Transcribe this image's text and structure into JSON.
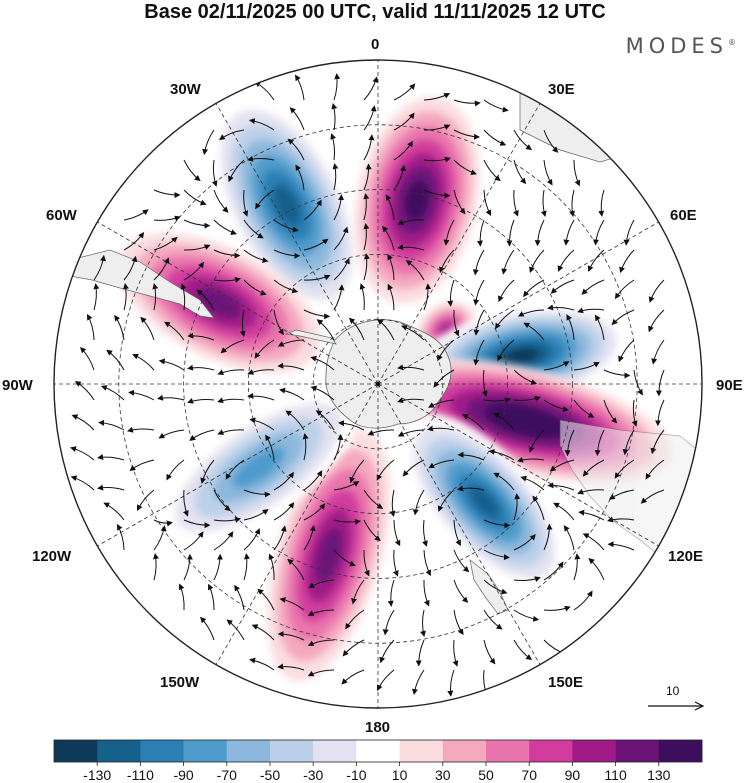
{
  "title": "Base 02/11/2025 00 UTC, valid 11/11/2025 12 UTC",
  "brand": "MODES",
  "brand_mark": "®",
  "longitude_labels": {
    "lon_0": "0",
    "lon_30e": "30E",
    "lon_60e": "60E",
    "lon_90e": "90E",
    "lon_120e": "120E",
    "lon_150e": "150E",
    "lon_180": "180",
    "lon_150w": "150W",
    "lon_120w": "120W",
    "lon_90w": "90W",
    "lon_60w": "60W",
    "lon_30w": "30W"
  },
  "reference_vector": {
    "label": "10"
  },
  "colorbar": {
    "tick_labels": [
      "-130",
      "-110",
      "-90",
      "-70",
      "-50",
      "-30",
      "-10",
      "10",
      "30",
      "50",
      "70",
      "90",
      "110",
      "130"
    ],
    "colors": [
      "#0e3a5a",
      "#16608c",
      "#2c7fb5",
      "#4f9ccc",
      "#8bb8dc",
      "#bcd1e9",
      "#e3e2f1",
      "#ffffff",
      "#fbdde0",
      "#f4a9bf",
      "#ea74ad",
      "#d13c9e",
      "#a01a88",
      "#6a1278",
      "#3d0d5e"
    ]
  },
  "colors": {
    "ocean": "#ffffff",
    "land": "#eeeeee",
    "grid": "#333333"
  },
  "anomaly_centers": [
    {
      "name": "north-neg",
      "value": -130,
      "bearing_deg": -27,
      "radius_frac": 0.62
    },
    {
      "name": "north-pos",
      "value": 115,
      "bearing_deg": 12,
      "radius_frac": 0.58
    },
    {
      "name": "nw-pos",
      "value": 105,
      "bearing_deg": -63,
      "radius_frac": 0.55
    },
    {
      "name": "small-pos",
      "value": 85,
      "bearing_deg": 52,
      "radius_frac": 0.27
    },
    {
      "name": "east-neg",
      "value": -135,
      "bearing_deg": 79,
      "radius_frac": 0.45
    },
    {
      "name": "east-pos",
      "value": 135,
      "bearing_deg": 104,
      "radius_frac": 0.47
    },
    {
      "name": "se-neg",
      "value": -120,
      "bearing_deg": 138,
      "radius_frac": 0.49
    },
    {
      "name": "south-pos",
      "value": 100,
      "bearing_deg": 196,
      "radius_frac": 0.55
    },
    {
      "name": "sw-neg",
      "value": -80,
      "bearing_deg": 235,
      "radius_frac": 0.45
    }
  ]
}
